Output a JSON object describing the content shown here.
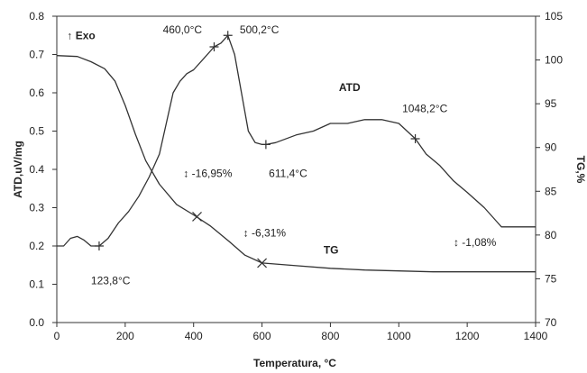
{
  "chart_data": {
    "type": "line",
    "xlabel": "Temperatura, °C",
    "ylabel_left": "ATD,uV/mg",
    "ylabel_right": "TG,%",
    "xlim": [
      0,
      1400
    ],
    "ylim_left": [
      0.0,
      0.8
    ],
    "ylim_right": [
      70,
      105
    ],
    "x_ticks": [
      "0",
      "200",
      "400",
      "600",
      "800",
      "1000",
      "1200",
      "1400"
    ],
    "y_left_ticks": [
      "0.0",
      "0.1",
      "0.2",
      "0.3",
      "0.4",
      "0.5",
      "0.6",
      "0.7",
      "0.8"
    ],
    "y_right_ticks": [
      "70",
      "75",
      "80",
      "85",
      "90",
      "95",
      "100",
      "105"
    ],
    "grid": false,
    "series": [
      {
        "name": "ATD",
        "axis": "left",
        "color": "#333333",
        "x": [
          0,
          20,
          40,
          60,
          80,
          100,
          123.8,
          150,
          180,
          210,
          240,
          270,
          300,
          320,
          340,
          360,
          380,
          400,
          430,
          460,
          480,
          500.2,
          520,
          540,
          560,
          580,
          600,
          611.4,
          640,
          700,
          750,
          800,
          850,
          900,
          950,
          1000,
          1048.2,
          1080,
          1120,
          1160,
          1200,
          1250,
          1290,
          1300,
          1350,
          1400
        ],
        "values": [
          0.2,
          0.2,
          0.22,
          0.225,
          0.215,
          0.2,
          0.2,
          0.22,
          0.26,
          0.29,
          0.33,
          0.38,
          0.44,
          0.52,
          0.6,
          0.63,
          0.65,
          0.66,
          0.69,
          0.72,
          0.73,
          0.75,
          0.7,
          0.6,
          0.5,
          0.47,
          0.465,
          0.465,
          0.47,
          0.49,
          0.5,
          0.52,
          0.52,
          0.53,
          0.53,
          0.52,
          0.48,
          0.44,
          0.41,
          0.37,
          0.34,
          0.3,
          0.26,
          0.25,
          0.25,
          0.25
        ],
        "markers_x": [
          123.8,
          460.0,
          500.2,
          611.4,
          1048.2
        ],
        "markers_y": [
          0.2,
          0.72,
          0.75,
          0.465,
          0.48
        ]
      },
      {
        "name": "TG",
        "axis": "right",
        "color": "#333333",
        "x": [
          0,
          60,
          100,
          140,
          170,
          200,
          230,
          260,
          300,
          350,
          400,
          450,
          500,
          550,
          600,
          700,
          800,
          900,
          1000,
          1100,
          1200,
          1300,
          1400
        ],
        "values": [
          100.5,
          100.4,
          99.8,
          99.0,
          97.6,
          94.8,
          91.5,
          88.5,
          85.8,
          83.5,
          82.3,
          81.0,
          79.4,
          77.7,
          76.8,
          76.5,
          76.2,
          76.0,
          75.9,
          75.8,
          75.8,
          75.8,
          75.8
        ],
        "markers_x": [
          410,
          600
        ],
        "markers_y": [
          82.1,
          76.8
        ]
      }
    ],
    "annotations": [
      {
        "text": "↑ Exo",
        "x": 30,
        "y": 0.74,
        "axis": "left",
        "bold": true
      },
      {
        "text": "460,0°C",
        "x": 310,
        "y": 0.755,
        "axis": "left"
      },
      {
        "text": "500,2°C",
        "x": 535,
        "y": 0.755,
        "axis": "left"
      },
      {
        "text": "ATD",
        "x": 825,
        "y": 0.605,
        "axis": "left",
        "bold": true
      },
      {
        "text": "1048,2°C",
        "x": 1010,
        "y": 0.55,
        "axis": "left"
      },
      {
        "text": "↕ -16,95%",
        "x": 370,
        "y": 0.38,
        "axis": "left"
      },
      {
        "text": "611,4°C",
        "x": 620,
        "y": 0.38,
        "axis": "left"
      },
      {
        "text": "↕ -6,31%",
        "x": 545,
        "y": 0.225,
        "axis": "left"
      },
      {
        "text": "TG",
        "x": 780,
        "y": 0.18,
        "axis": "left",
        "bold": true
      },
      {
        "text": "↕ -1,08%",
        "x": 1160,
        "y": 0.2,
        "axis": "left"
      },
      {
        "text": "123,8°C",
        "x": 100,
        "y": 0.1,
        "axis": "left"
      }
    ]
  }
}
